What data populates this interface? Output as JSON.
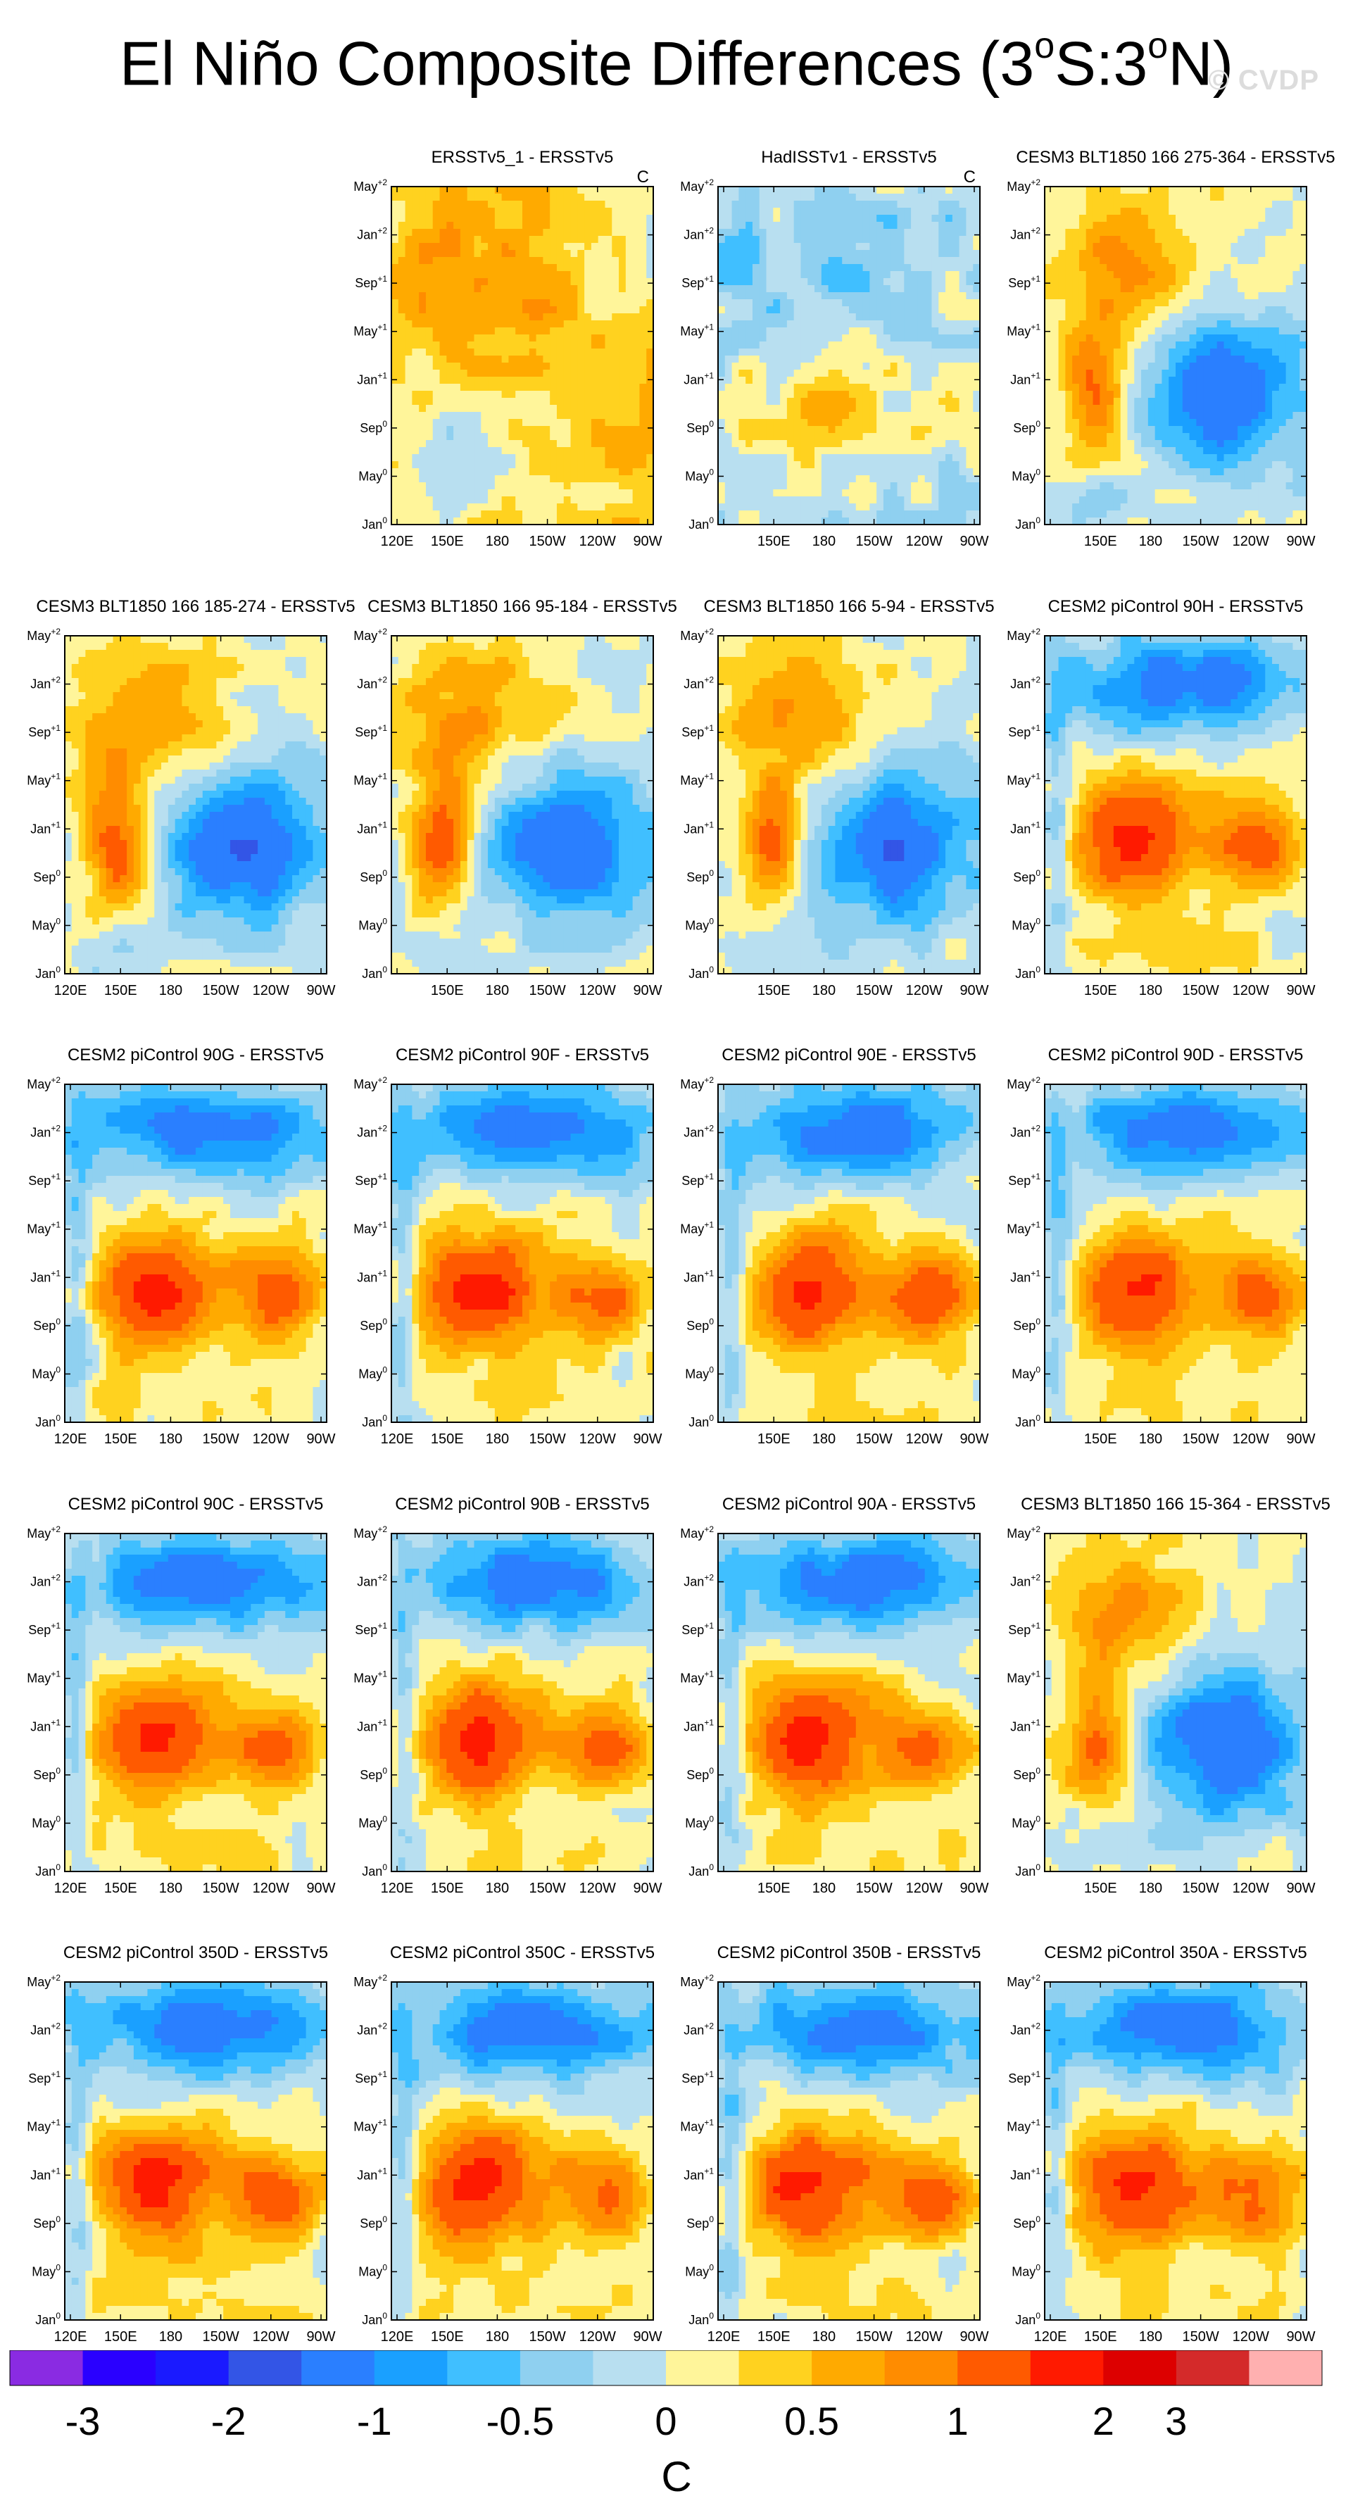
{
  "figure": {
    "title_main": "El Niño Composite Differences (3",
    "title_sup1": "o",
    "title_mid": "S:3",
    "title_sup2": "o",
    "title_end": "N)",
    "watermark": "© CVDP",
    "units": "C"
  },
  "chart_data": {
    "type": "heatmap",
    "description_type": "hovmoller-contour-panels",
    "x_tick_labels": [
      "120E",
      "150E",
      "180",
      "150W",
      "120W",
      "90W"
    ],
    "y_tick_labels": [
      {
        "base": "Jan",
        "sup": "0"
      },
      {
        "base": "May",
        "sup": "0"
      },
      {
        "base": "Sep",
        "sup": "0"
      },
      {
        "base": "Jan",
        "sup": "+1"
      },
      {
        "base": "May",
        "sup": "+1"
      },
      {
        "base": "Sep",
        "sup": "+1"
      },
      {
        "base": "Jan",
        "sup": "+2"
      },
      {
        "base": "May",
        "sup": "+2"
      }
    ],
    "colorbar": {
      "colors": [
        "#8a2be2",
        "#2a00ff",
        "#1a1aff",
        "#3355e6",
        "#2a7fff",
        "#1aa0ff",
        "#40bfff",
        "#8fd0f0",
        "#b8dff0",
        "#fff59a",
        "#ffd21f",
        "#ffaa00",
        "#ff8c00",
        "#ff5a00",
        "#ff1a00",
        "#dd0000",
        "#d42a2a",
        "#ffb0b0"
      ],
      "labels": [
        "-3",
        "-2",
        "-1",
        "-0.5",
        "0",
        "0.5",
        "1",
        "2",
        "3"
      ],
      "label_after_box": [
        1,
        3,
        5,
        7,
        9,
        11,
        13,
        15,
        16
      ],
      "units": "C"
    },
    "panels": [
      {
        "title": "ERSSTv5_1 - ERSSTv5",
        "unit_label": "C",
        "pattern": "obs-warm"
      },
      {
        "title": "HadISSTv1 - ERSSTv5",
        "unit_label": "C",
        "pattern": "obs-mixed"
      },
      {
        "title": "CESM3 BLT1850 166 275-364 - ERSSTv5",
        "unit_label": "",
        "pattern": "cesm3"
      },
      {
        "title": "CESM3 BLT1850 166 185-274 - ERSSTv5",
        "unit_label": "",
        "pattern": "cesm3"
      },
      {
        "title": "CESM3 BLT1850 166 95-184 - ERSSTv5",
        "unit_label": "",
        "pattern": "cesm3"
      },
      {
        "title": "CESM3 BLT1850 166 5-94 - ERSSTv5",
        "unit_label": "",
        "pattern": "cesm3"
      },
      {
        "title": "CESM2 piControl 90H - ERSSTv5",
        "unit_label": "",
        "pattern": "cesm2"
      },
      {
        "title": "CESM2 piControl 90G - ERSSTv5",
        "unit_label": "",
        "pattern": "cesm2"
      },
      {
        "title": "CESM2 piControl 90F - ERSSTv5",
        "unit_label": "",
        "pattern": "cesm2"
      },
      {
        "title": "CESM2 piControl 90E - ERSSTv5",
        "unit_label": "",
        "pattern": "cesm2"
      },
      {
        "title": "CESM2 piControl 90D - ERSSTv5",
        "unit_label": "",
        "pattern": "cesm2"
      },
      {
        "title": "CESM2 piControl 90C - ERSSTv5",
        "unit_label": "",
        "pattern": "cesm2"
      },
      {
        "title": "CESM2 piControl 90B - ERSSTv5",
        "unit_label": "",
        "pattern": "cesm2"
      },
      {
        "title": "CESM2 piControl 90A - ERSSTv5",
        "unit_label": "",
        "pattern": "cesm2"
      },
      {
        "title": "CESM3 BLT1850 166 15-364 - ERSSTv5",
        "unit_label": "",
        "pattern": "cesm3"
      },
      {
        "title": "CESM2 piControl 350D - ERSSTv5",
        "unit_label": "",
        "pattern": "cesm2"
      },
      {
        "title": "CESM2 piControl 350C - ERSSTv5",
        "unit_label": "",
        "pattern": "cesm2"
      },
      {
        "title": "CESM2 piControl 350B - ERSSTv5",
        "unit_label": "",
        "pattern": "cesm2"
      },
      {
        "title": "CESM2 piControl 350A - ERSSTv5",
        "unit_label": "",
        "pattern": "cesm2"
      }
    ]
  }
}
